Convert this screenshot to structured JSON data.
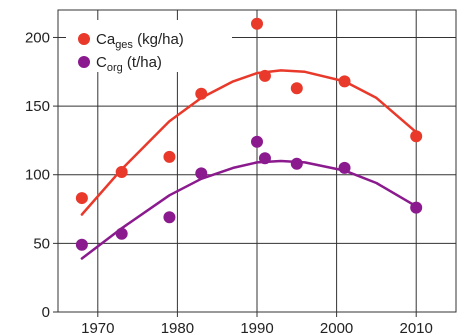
{
  "chart_data": {
    "type": "scatter",
    "xlim": [
      1965,
      2015
    ],
    "ylim": [
      0,
      220
    ],
    "x_ticks": [
      1970,
      1980,
      1990,
      2000,
      2010
    ],
    "y_ticks": [
      0,
      50,
      100,
      150,
      200
    ],
    "x_tick_labels": [
      "1970",
      "1980",
      "1990",
      "2000",
      "2010"
    ],
    "y_tick_labels": [
      "0",
      "50",
      "100",
      "150",
      "200"
    ],
    "grid": true,
    "legend_position": "top-left",
    "series": [
      {
        "legend_main": "Ca",
        "legend_sub": "ges",
        "legend_unit": " (kg/ha)",
        "color": "#e8392b",
        "x": [
          1968,
          1973,
          1979,
          1983,
          1990,
          1991,
          1995,
          2001,
          2010
        ],
        "y": [
          83,
          102,
          113,
          159,
          210,
          172,
          163,
          168,
          128
        ],
        "trend_x": [
          1968,
          1973,
          1979,
          1983,
          1987,
          1990,
          1993,
          1996,
          2001,
          2005,
          2010
        ],
        "trend_y": [
          71,
          104,
          139,
          156,
          168,
          174,
          176,
          175,
          168,
          156,
          131
        ]
      },
      {
        "legend_main": "C",
        "legend_sub": "org",
        "legend_unit": " (t/ha)",
        "color": "#8a1a8e",
        "x": [
          1968,
          1973,
          1979,
          1983,
          1990,
          1991,
          1995,
          2001,
          2010
        ],
        "y": [
          49,
          57,
          69,
          101,
          124,
          112,
          108,
          105,
          76
        ],
        "trend_x": [
          1968,
          1973,
          1979,
          1983,
          1987,
          1990,
          1993,
          1996,
          2001,
          2005,
          2010
        ],
        "trend_y": [
          39,
          61,
          85,
          97,
          105,
          109,
          110,
          109,
          103,
          94,
          77
        ]
      }
    ]
  }
}
